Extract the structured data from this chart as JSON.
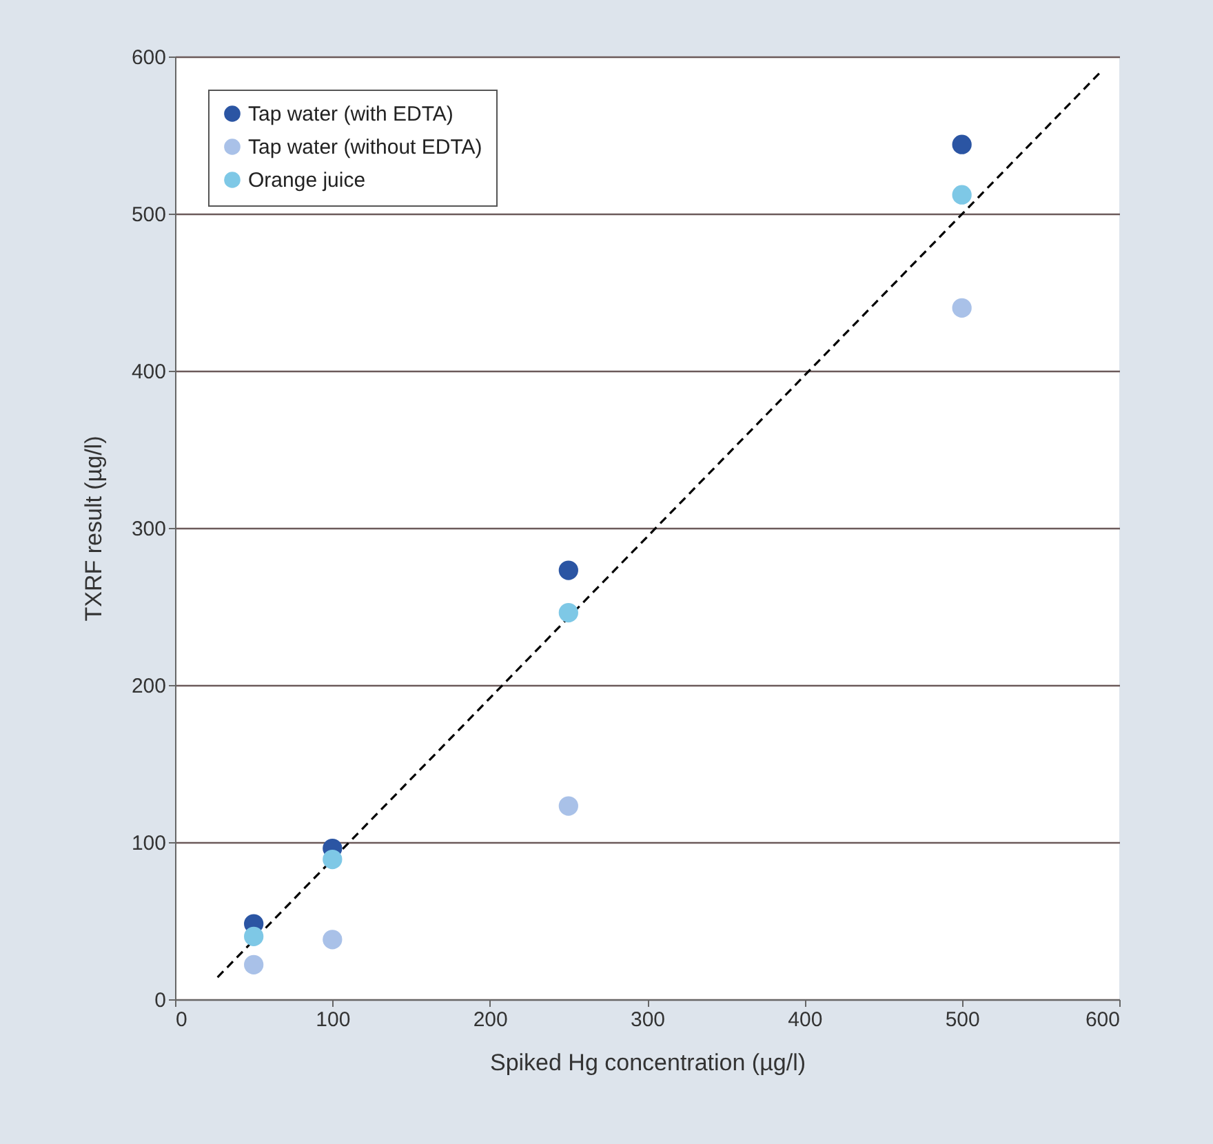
{
  "chart_data": {
    "type": "scatter",
    "xlabel": "Spiked Hg concentration (µg/l)",
    "ylabel": "TXRF result (µg/l)",
    "x": [
      50,
      100,
      250,
      500
    ],
    "series": [
      {
        "name": "Tap water (with EDTA)",
        "color": "#2b55a3",
        "values": [
          48,
          96,
          273,
          544
        ]
      },
      {
        "name": "Tap water (without EDTA)",
        "color": "#a9c1e8",
        "values": [
          22,
          38,
          123,
          440
        ]
      },
      {
        "name": "Orange juice",
        "color": "#7ec8e6",
        "values": [
          40,
          89,
          246,
          512
        ]
      },
      {
        "type": "line",
        "color": "#000000",
        "line_style": "dashed",
        "marker": "none",
        "x": [
          27,
          588
        ],
        "values": [
          14,
          590
        ]
      }
    ],
    "xlim": [
      0,
      600
    ],
    "xticks": [
      0,
      100,
      200,
      300,
      400,
      500,
      600
    ],
    "ylim": [
      0,
      600
    ],
    "yticks": [
      0,
      100,
      200,
      300,
      400,
      500,
      600
    ],
    "grid": "y",
    "legend": "top left",
    "marker": "circle"
  }
}
